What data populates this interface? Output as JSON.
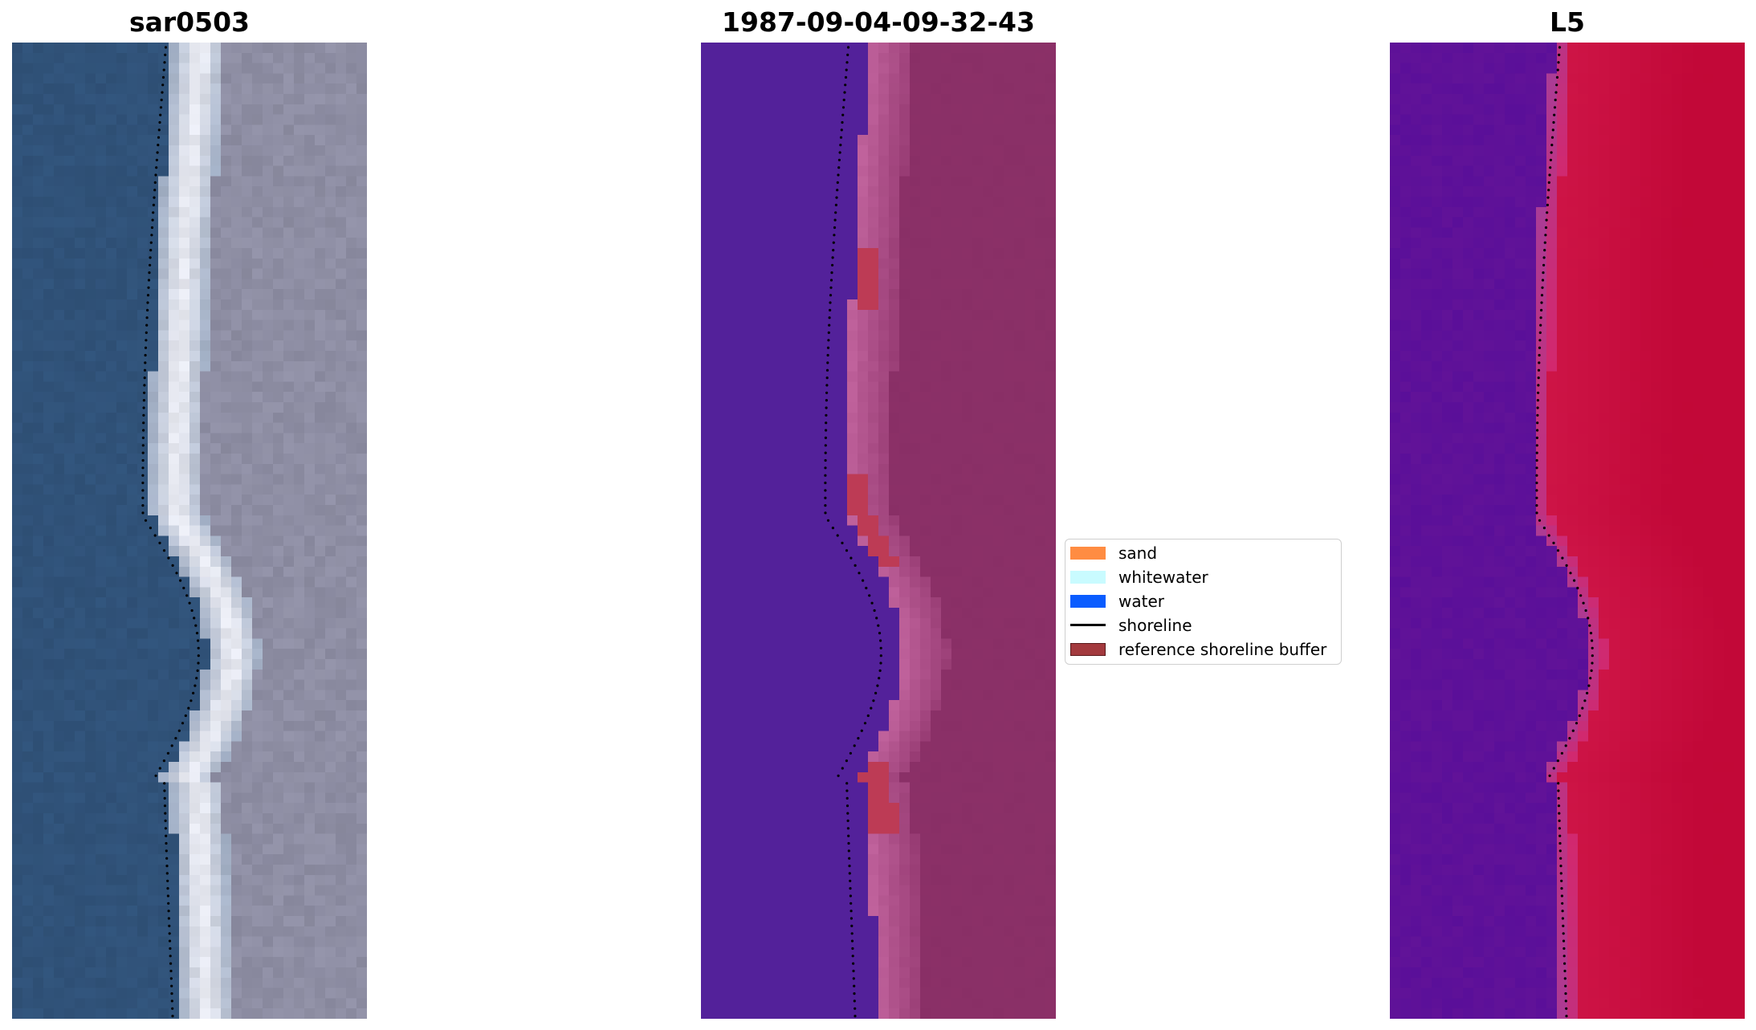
{
  "panels": [
    {
      "title": "sar0503",
      "kind": "rgb"
    },
    {
      "title": "1987-09-04-09-32-43",
      "kind": "classification"
    },
    {
      "title": "L5",
      "kind": "index"
    }
  ],
  "legend": {
    "items": [
      {
        "label": "sand",
        "type": "swatch",
        "color": "#ff8c42"
      },
      {
        "label": "whitewater",
        "type": "swatch",
        "color": "#c9fbff"
      },
      {
        "label": "water",
        "type": "swatch",
        "color": "#0a5cff"
      },
      {
        "label": "shoreline",
        "type": "line",
        "color": "#000000"
      },
      {
        "label": "reference shoreline buffer",
        "type": "swatch",
        "color": "#a33a3e"
      }
    ]
  },
  "colors": {
    "sea_rgb": "#2f5178",
    "surf_rgb": "#e6e8f0",
    "land_rgb": "#8a8aa0",
    "class_water": "#53219a",
    "class_sand": "#8b3067",
    "class_white": "#c0629c",
    "class_buffer": "#bd3b55",
    "index_low": "#5a0f99",
    "index_high": "#c20838",
    "shoreline": "#000000"
  }
}
